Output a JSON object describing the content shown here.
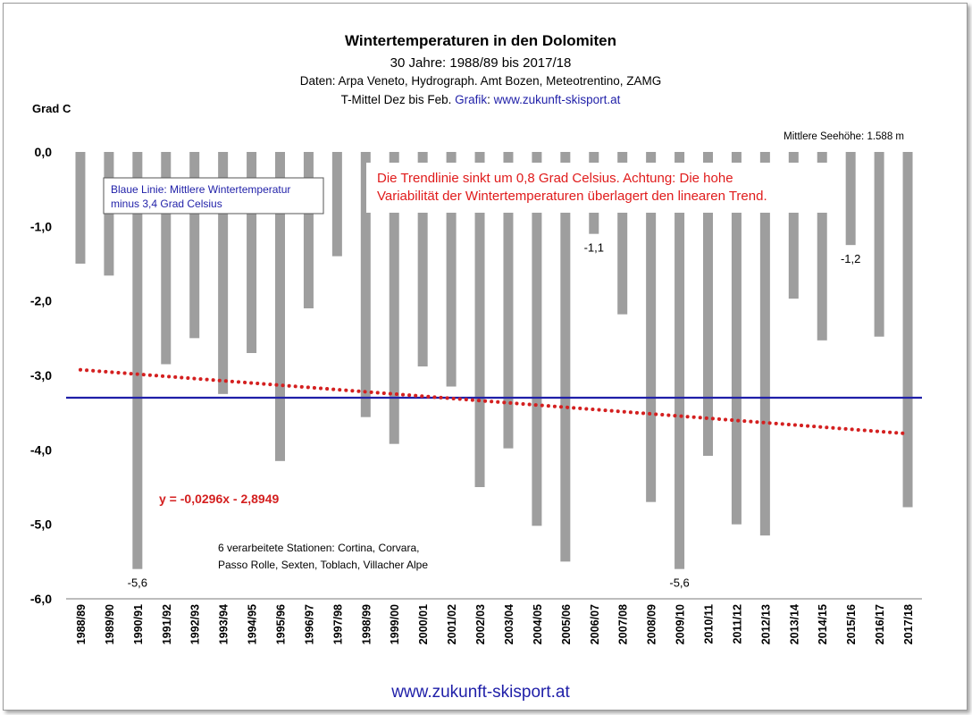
{
  "footer_url": "www.zukunft-skisport.at",
  "chart_data": {
    "type": "bar",
    "title": "Wintertemperaturen in den Dolomiten",
    "subtitle_lines": [
      "30 Jahre: 1988/89 bis 2017/18",
      "Daten: Arpa Veneto, Hydrograph. Amt Bozen, Meteotrentino, ZAMG"
    ],
    "subtitle_line3_prefix": "T-Mittel Dez bis Feb. ",
    "subtitle_line3_grafik": "Grafik",
    "subtitle_line3_sep": ":  ",
    "subtitle_line3_url": "www.zukunft-skisport.at",
    "ylabel": "Grad C",
    "ylim": [
      -6,
      0
    ],
    "yticks": [
      "0,0",
      "-1,0",
      "-2,0",
      "-3,0",
      "-4,0",
      "-5,0",
      "-6,0"
    ],
    "elevation_note": "Mittlere Seehöhe: 1.588 m",
    "legend_box": {
      "line1": "Blaue Linie: Mittlere Wintertemperatur",
      "line2": "minus 3,4 Grad Celsius"
    },
    "trend_note": {
      "line1": "Die Trendlinie sinkt um 0,8 Grad Celsius. Achtung: Die hohe",
      "line2": "Variabilität der Wintertemperaturen überlagert den linearen Trend."
    },
    "equation": "y = -0,0296x - 2,8949",
    "stations_note": {
      "line1": "6 verarbeitete Stationen: Cortina, Corvara,",
      "line2": "Passo Rolle, Sexten, Toblach, Villacher Alpe"
    },
    "categories": [
      "1988/89",
      "1989/90",
      "1990/91",
      "1991/92",
      "1992/93",
      "1993/94",
      "1994/95",
      "1995/96",
      "1996/97",
      "1997/98",
      "1998/99",
      "1999/00",
      "2000/01",
      "2001/02",
      "2002/03",
      "2003/04",
      "2004/05",
      "2005/06",
      "2006/07",
      "2007/08",
      "2008/09",
      "2009/10",
      "2010/11",
      "2011/12",
      "2012/13",
      "2013/14",
      "2014/15",
      "2015/16",
      "2016/17",
      "2017/18"
    ],
    "values": [
      -1.5,
      -1.66,
      -5.6,
      -2.85,
      -2.5,
      -3.25,
      -2.7,
      -4.15,
      -2.1,
      -1.4,
      -3.56,
      -3.92,
      -2.88,
      -3.15,
      -4.5,
      -3.98,
      -5.02,
      -5.5,
      -1.1,
      -2.18,
      -4.7,
      -5.6,
      -4.08,
      -5.0,
      -5.15,
      -1.97,
      -2.53,
      -1.25,
      -2.48,
      -4.77
    ],
    "data_labels": [
      {
        "category": "1990/91",
        "text": "-5,6"
      },
      {
        "category": "2006/07",
        "text": "-1,1"
      },
      {
        "category": "2009/10",
        "text": "-5,6"
      },
      {
        "category": "2015/16",
        "text": "-1,2"
      }
    ],
    "mean_line": -3.3,
    "trend": {
      "slope": -0.0296,
      "intercept": -2.8949
    },
    "colors": {
      "bars": "#9e9e9e",
      "mean_line": "#1f1fa8",
      "trend": "#d42020",
      "accent_red": "#e01b1b",
      "accent_blue": "#1f1fa8"
    },
    "grid": false
  }
}
